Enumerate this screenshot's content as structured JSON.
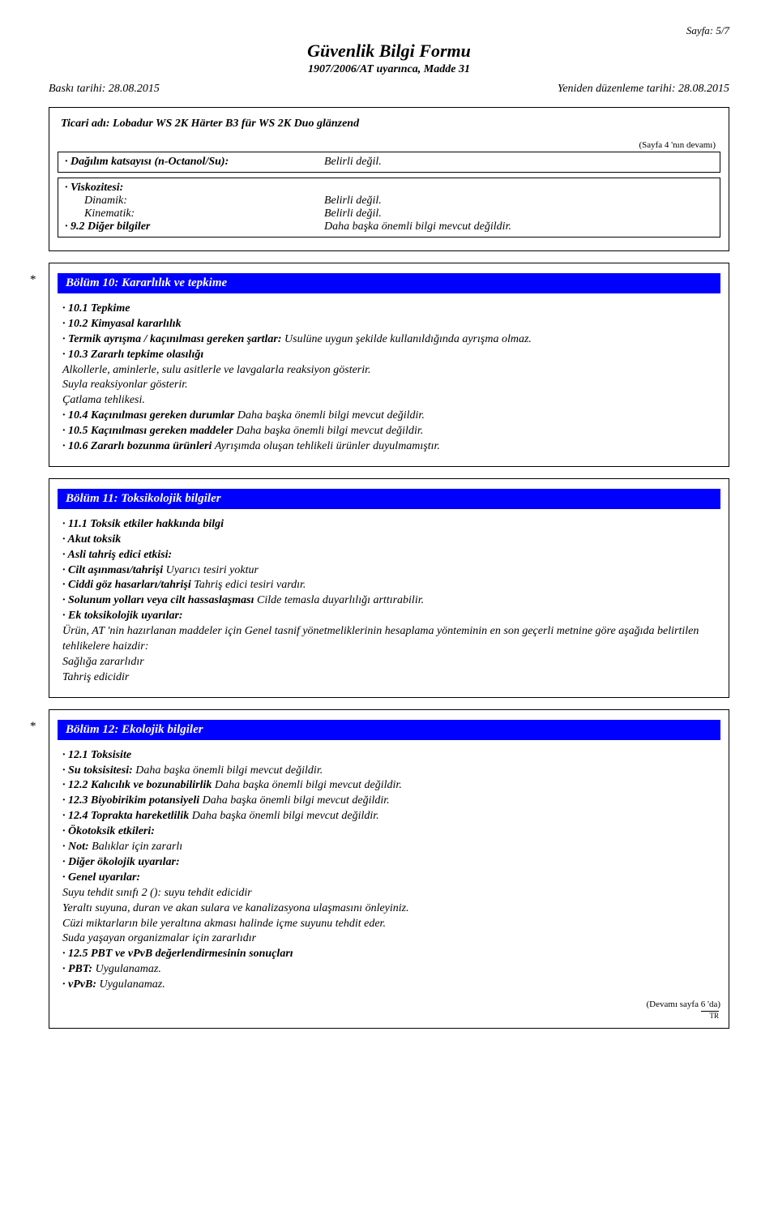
{
  "page_number": "Sayfa: 5/7",
  "header": {
    "title": "Güvenlik Bilgi Formu",
    "subtitle": "1907/2006/AT uyarınca, Madde 31",
    "print_date_label": "Baskı tarihi: 28.08.2015",
    "revision_date_label": "Yeniden düzenleme tarihi: 28.08.2015"
  },
  "trade_name": "Ticari adı: Lobadur WS 2K Härter B3 für WS 2K Duo glänzend",
  "continued_from": "(Sayfa 4 'nın devamı)",
  "box1": {
    "partition_label": "· Dağılım katsayısı (n-Octanol/Su):",
    "partition_value": "Belirli değil."
  },
  "box2": {
    "viscosity_label": "· Viskozitesi:",
    "dynamic_label": "Dinamik:",
    "dynamic_value": "Belirli değil.",
    "kinematic_label": "Kinematik:",
    "kinematic_value": "Belirli değil.",
    "other_label": "· 9.2 Diğer bilgiler",
    "other_value": "Daha başka önemli bilgi mevcut değildir."
  },
  "section10": {
    "title": "Bölüm 10: Kararlılık ve tepkime",
    "l1": "· 10.1 Tepkime",
    "l2": "· 10.2 Kimyasal kararlılık",
    "l3a": "· Termik ayrışma / kaçınılması gereken şartlar: ",
    "l3b": "Usulüne uygun şekilde kullanıldığında ayrışma olmaz.",
    "l4": "· 10.3 Zararlı tepkime olasılığı",
    "l5": "Alkollerle, aminlerle, sulu asitlerle ve lavgalarla reaksiyon gösterir.",
    "l6": "Suyla reaksiyonlar gösterir.",
    "l7": "Çatlama tehlikesi.",
    "l8a": "· 10.4 Kaçınılması gereken durumlar ",
    "l8b": "Daha başka önemli bilgi mevcut değildir.",
    "l9a": "· 10.5 Kaçınılması gereken maddeler ",
    "l9b": "Daha başka önemli bilgi mevcut değildir.",
    "l10a": "· 10.6 Zararlı bozunma ürünleri ",
    "l10b": "Ayrışımda oluşan tehlikeli ürünler duyulmamıştır."
  },
  "section11": {
    "title": "Bölüm 11: Toksikolojik bilgiler",
    "l1": "· 11.1 Toksik etkiler hakkında bilgi",
    "l2": "· Akut toksik",
    "l3": "· Asli tahriş edici etkisi:",
    "l4a": "· Cilt aşınması/tahrişi ",
    "l4b": "Uyarıcı tesiri yoktur",
    "l5a": "· Ciddi göz hasarları/tahrişi ",
    "l5b": "Tahriş edici tesiri vardır.",
    "l6a": "· Solunum yolları veya cilt hassaslaşması ",
    "l6b": "Cilde temasla duyarlılığı arttırabilir.",
    "l7": "· Ek toksikolojik uyarılar:",
    "l8": "Ürün, AT 'nin hazırlanan maddeler için Genel tasnif yönetmeliklerinin hesaplama yönteminin en son geçerli metnine göre aşağıda belirtilen tehlikelere haizdir:",
    "l9": "Sağlığa zararlıdır",
    "l10": "Tahriş edicidir"
  },
  "section12": {
    "title": "Bölüm 12: Ekolojik bilgiler",
    "l1": "· 12.1 Toksisite",
    "l2a": "· Su toksisitesi: ",
    "l2b": "Daha başka önemli bilgi mevcut değildir.",
    "l3a": "· 12.2 Kalıcılık ve bozunabilirlik ",
    "l3b": "Daha başka önemli bilgi mevcut değildir.",
    "l4a": "· 12.3 Biyobirikim potansiyeli ",
    "l4b": "Daha başka önemli bilgi mevcut değildir.",
    "l5a": "· 12.4 Toprakta hareketlilik ",
    "l5b": "Daha başka önemli bilgi mevcut değildir.",
    "l6": "· Ökotoksik etkileri:",
    "l7a": "· Not: ",
    "l7b": "Balıklar için zararlı",
    "l8": "· Diğer ökolojik uyarılar:",
    "l9": "· Genel uyarılar:",
    "l10": "Suyu tehdit sınıfı 2 (): suyu tehdit edicidir",
    "l11": "Yeraltı suyuna, duran ve akan sulara ve kanalizasyona ulaşmasını önleyiniz.",
    "l12": "Cüzi miktarların bile yeraltına akması halinde içme suyunu tehdit eder.",
    "l13": "Suda yaşayan organizmalar için zararlıdır",
    "l14": "· 12.5 PBT ve vPvB değerlendirmesinin sonuçları",
    "l15a": "· PBT: ",
    "l15b": "Uygulanamaz.",
    "l16a": "· vPvB: ",
    "l16b": "Uygulanamaz."
  },
  "continued_next": "(Devamı sayfa 6 'da)",
  "footer_mark": "TR",
  "colors": {
    "section_bg": "#0000ff",
    "section_fg": "#ffffff",
    "text": "#000000",
    "page_bg": "#ffffff"
  }
}
